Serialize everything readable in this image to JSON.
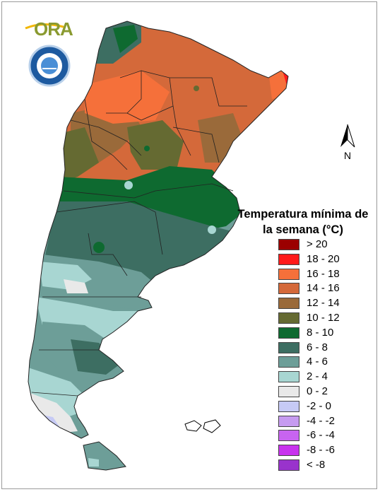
{
  "logo": {
    "name": "ORA",
    "institution_seal": "Servicio Meteorológico Nacional Argentina"
  },
  "compass": {
    "label": "N",
    "icon": "north-arrow-icon"
  },
  "legend": {
    "title": "Temperatura mínima de la semana (°C)",
    "items": [
      {
        "label": "> 20",
        "color": "#9b0000"
      },
      {
        "label": "18 - 20",
        "color": "#ff1a1a"
      },
      {
        "label": "16 - 18",
        "color": "#f5703a"
      },
      {
        "label": "14 - 16",
        "color": "#d4693a"
      },
      {
        "label": "12 - 14",
        "color": "#9a6a3a"
      },
      {
        "label": "10 - 12",
        "color": "#656a32"
      },
      {
        "label": "8 - 10",
        "color": "#0e6a30"
      },
      {
        "label": "6 - 8",
        "color": "#3d6e62"
      },
      {
        "label": "4 - 6",
        "color": "#6d9e98"
      },
      {
        "label": "2 - 4",
        "color": "#a8d6d2"
      },
      {
        "label": "0 - 2",
        "color": "#e9e9e9"
      },
      {
        "label": "-2 - 0",
        "color": "#c6caf5"
      },
      {
        "label": "-4 - -2",
        "color": "#c69bf0"
      },
      {
        "label": "-6 - -4",
        "color": "#c864f0"
      },
      {
        "label": "-8 - -6",
        "color": "#c832ee"
      },
      {
        "label": "< -8",
        "color": "#9933cc"
      }
    ]
  }
}
